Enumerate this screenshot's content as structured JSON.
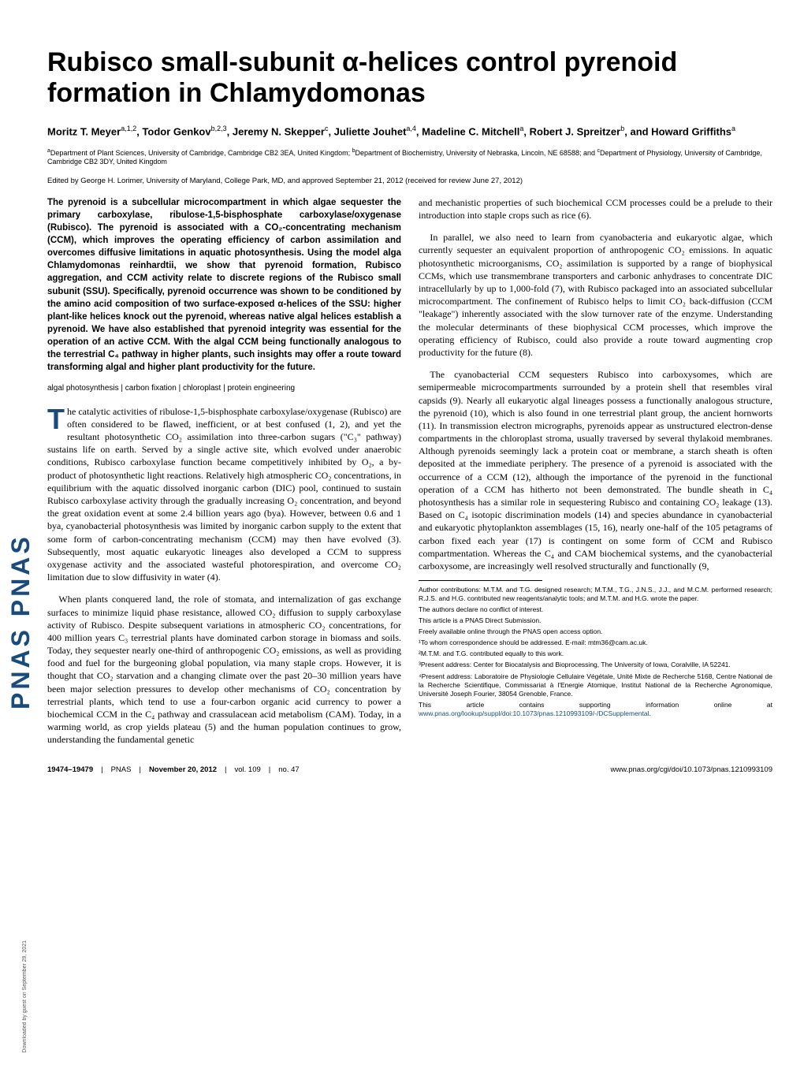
{
  "sidebar": {
    "brand": "PNAS PNAS"
  },
  "title": "Rubisco small-subunit α-helices control pyrenoid formation in Chlamydomonas",
  "authors_html": "Moritz T. Meyer<sup>a,1,2</sup>, Todor Genkov<sup>b,2,3</sup>, Jeremy N. Skepper<sup>c</sup>, Juliette Jouhet<sup>a,4</sup>, Madeline C. Mitchell<sup>a</sup>, Robert J. Spreitzer<sup>b</sup>, and Howard Griffiths<sup>a</sup>",
  "affiliations_html": "<sup>a</sup>Department of Plant Sciences, University of Cambridge, Cambridge CB2 3EA, United Kingdom; <sup>b</sup>Department of Biochemistry, University of Nebraska, Lincoln, NE 68588; and <sup>c</sup>Department of Physiology, University of Cambridge, Cambridge CB2 3DY, United Kingdom",
  "edited": "Edited by George H. Lorimer, University of Maryland, College Park, MD, and approved September 21, 2012 (received for review June 27, 2012)",
  "abstract": "The pyrenoid is a subcellular microcompartment in which algae sequester the primary carboxylase, ribulose-1,5-bisphosphate carboxylase/oxygenase (Rubisco). The pyrenoid is associated with a CO₂-concentrating mechanism (CCM), which improves the operating efficiency of carbon assimilation and overcomes diffusive limitations in aquatic photosynthesis. Using the model alga Chlamydomonas reinhardtii, we show that pyrenoid formation, Rubisco aggregation, and CCM activity relate to discrete regions of the Rubisco small subunit (SSU). Specifically, pyrenoid occurrence was shown to be conditioned by the amino acid composition of two surface-exposed α-helices of the SSU: higher plant-like helices knock out the pyrenoid, whereas native algal helices establish a pyrenoid. We have also established that pyrenoid integrity was essential for the operation of an active CCM. With the algal CCM being functionally analogous to the terrestrial C₄ pathway in higher plants, such insights may offer a route toward transforming algal and higher plant productivity for the future.",
  "keywords": "algal photosynthesis | carbon fixation | chloroplast | protein engineering",
  "body": {
    "p1_first": "T",
    "p1_rest": "he catalytic activities of ribulose-1,5-bisphosphate carboxylase/oxygenase (Rubisco) are often considered to be flawed, inefficient, or at best confused (1, 2), and yet the resultant photosynthetic CO₂ assimilation into three-carbon sugars (\"C₃\" pathway) sustains life on earth. Served by a single active site, which evolved under anaerobic conditions, Rubisco carboxylase function became competitively inhibited by O₂, a by-product of photosynthetic light reactions. Relatively high atmospheric CO₂ concentrations, in equilibrium with the aquatic dissolved inorganic carbon (DIC) pool, continued to sustain Rubisco carboxylase activity through the gradually increasing O₂ concentration, and beyond the great oxidation event at some 2.4 billion years ago (bya). However, between 0.6 and 1 bya, cyanobacterial photosynthesis was limited by inorganic carbon supply to the extent that some form of carbon-concentrating mechanism (CCM) may then have evolved (3). Subsequently, most aquatic eukaryotic lineages also developed a CCM to suppress oxygenase activity and the associated wasteful photorespiration, and overcome CO₂ limitation due to slow diffusivity in water (4).",
    "p2": "When plants conquered land, the role of stomata, and internalization of gas exchange surfaces to minimize liquid phase resistance, allowed CO₂ diffusion to supply carboxylase activity of Rubisco. Despite subsequent variations in atmospheric CO₂ concentrations, for 400 million years C₃ terrestrial plants have dominated carbon storage in biomass and soils. Today, they sequester nearly one-third of anthropogenic CO₂ emissions, as well as providing food and fuel for the burgeoning global population, via many staple crops. However, it is thought that CO₂ starvation and a changing climate over the past 20–30 million years have been major selection pressures to develop other mechanisms of CO₂ concentration by terrestrial plants, which tend to use a four-carbon organic acid currency to power a biochemical CCM in the C₄ pathway and crassulacean acid metabolism (CAM). Today, in a warming world, as crop yields plateau (5) and the human population continues to grow, understanding the fundamental genetic",
    "p3": "and mechanistic properties of such biochemical CCM processes could be a prelude to their introduction into staple crops such as rice (6).",
    "p4": "In parallel, we also need to learn from cyanobacteria and eukaryotic algae, which currently sequester an equivalent proportion of anthropogenic CO₂ emissions. In aquatic photosynthetic microorganisms, CO₂ assimilation is supported by a range of biophysical CCMs, which use transmembrane transporters and carbonic anhydrases to concentrate DIC intracellularly by up to 1,000-fold (7), with Rubisco packaged into an associated subcellular microcompartment. The confinement of Rubisco helps to limit CO₂ back-diffusion (CCM \"leakage\") inherently associated with the slow turnover rate of the enzyme. Understanding the molecular determinants of these biophysical CCM processes, which improve the operating efficiency of Rubisco, could also provide a route toward augmenting crop productivity for the future (8).",
    "p5": "The cyanobacterial CCM sequesters Rubisco into carboxysomes, which are semipermeable microcompartments surrounded by a protein shell that resembles viral capsids (9). Nearly all eukaryotic algal lineages possess a functionally analogous structure, the pyrenoid (10), which is also found in one terrestrial plant group, the ancient hornworts (11). In transmission electron micrographs, pyrenoids appear as unstructured electron-dense compartments in the chloroplast stroma, usually traversed by several thylakoid membranes. Although pyrenoids seemingly lack a protein coat or membrane, a starch sheath is often deposited at the immediate periphery. The presence of a pyrenoid is associated with the occurrence of a CCM (12), although the importance of the pyrenoid in the functional operation of a CCM has hitherto not been demonstrated. The bundle sheath in C₄ photosynthesis has a similar role in sequestering Rubisco and containing CO₂ leakage (13). Based on C₄ isotopic discrimination models (14) and species abundance in cyanobacterial and eukaryotic phytoplankton assemblages (15, 16), nearly one-half of the 105 petagrams of carbon fixed each year (17) is contingent on some form of CCM and Rubisco compartmentation. Whereas the C₄ and CAM biochemical systems, and the cyanobacterial carboxysome, are increasingly well resolved structurally and functionally (9,"
  },
  "footnotes": {
    "contrib": "Author contributions: M.T.M. and T.G. designed research; M.T.M., T.G., J.N.S., J.J., and M.C.M. performed research; R.J.S. and H.G. contributed new reagents/analytic tools; and M.T.M. and H.G. wrote the paper.",
    "conflict": "The authors declare no conflict of interest.",
    "direct": "This article is a PNAS Direct Submission.",
    "openaccess": "Freely available online through the PNAS open access option.",
    "fn1": "¹To whom correspondence should be addressed. E-mail: mtm36@cam.ac.uk.",
    "fn2": "²M.T.M. and T.G. contributed equally to this work.",
    "fn3": "³Present address: Center for Biocatalysis and Bioprocessing, The University of Iowa, Coralville, IA 52241.",
    "fn4": "⁴Present address: Laboratoire de Physiologie Cellulaire Végétale, Unité Mixte de Recherche 5168, Centre National de la Recherche Scientifique, Commissariat à l'Energie Atomique, Institut National de la Recherche Agronomique, Université Joseph Fourier, 38054 Grenoble, France.",
    "suppl_text": "This article contains supporting information online at ",
    "suppl_link": "www.pnas.org/lookup/suppl/doi:10.1073/pnas.1210993109/-/DCSupplemental",
    "suppl_after": "."
  },
  "footer": {
    "pages": "19474–19479",
    "journal": "PNAS",
    "date": "November 20, 2012",
    "vol": "vol. 109",
    "issue": "no. 47",
    "doi": "www.pnas.org/cgi/doi/10.1073/pnas.1210993109"
  },
  "download": "Downloaded by guest on September 29, 2021"
}
